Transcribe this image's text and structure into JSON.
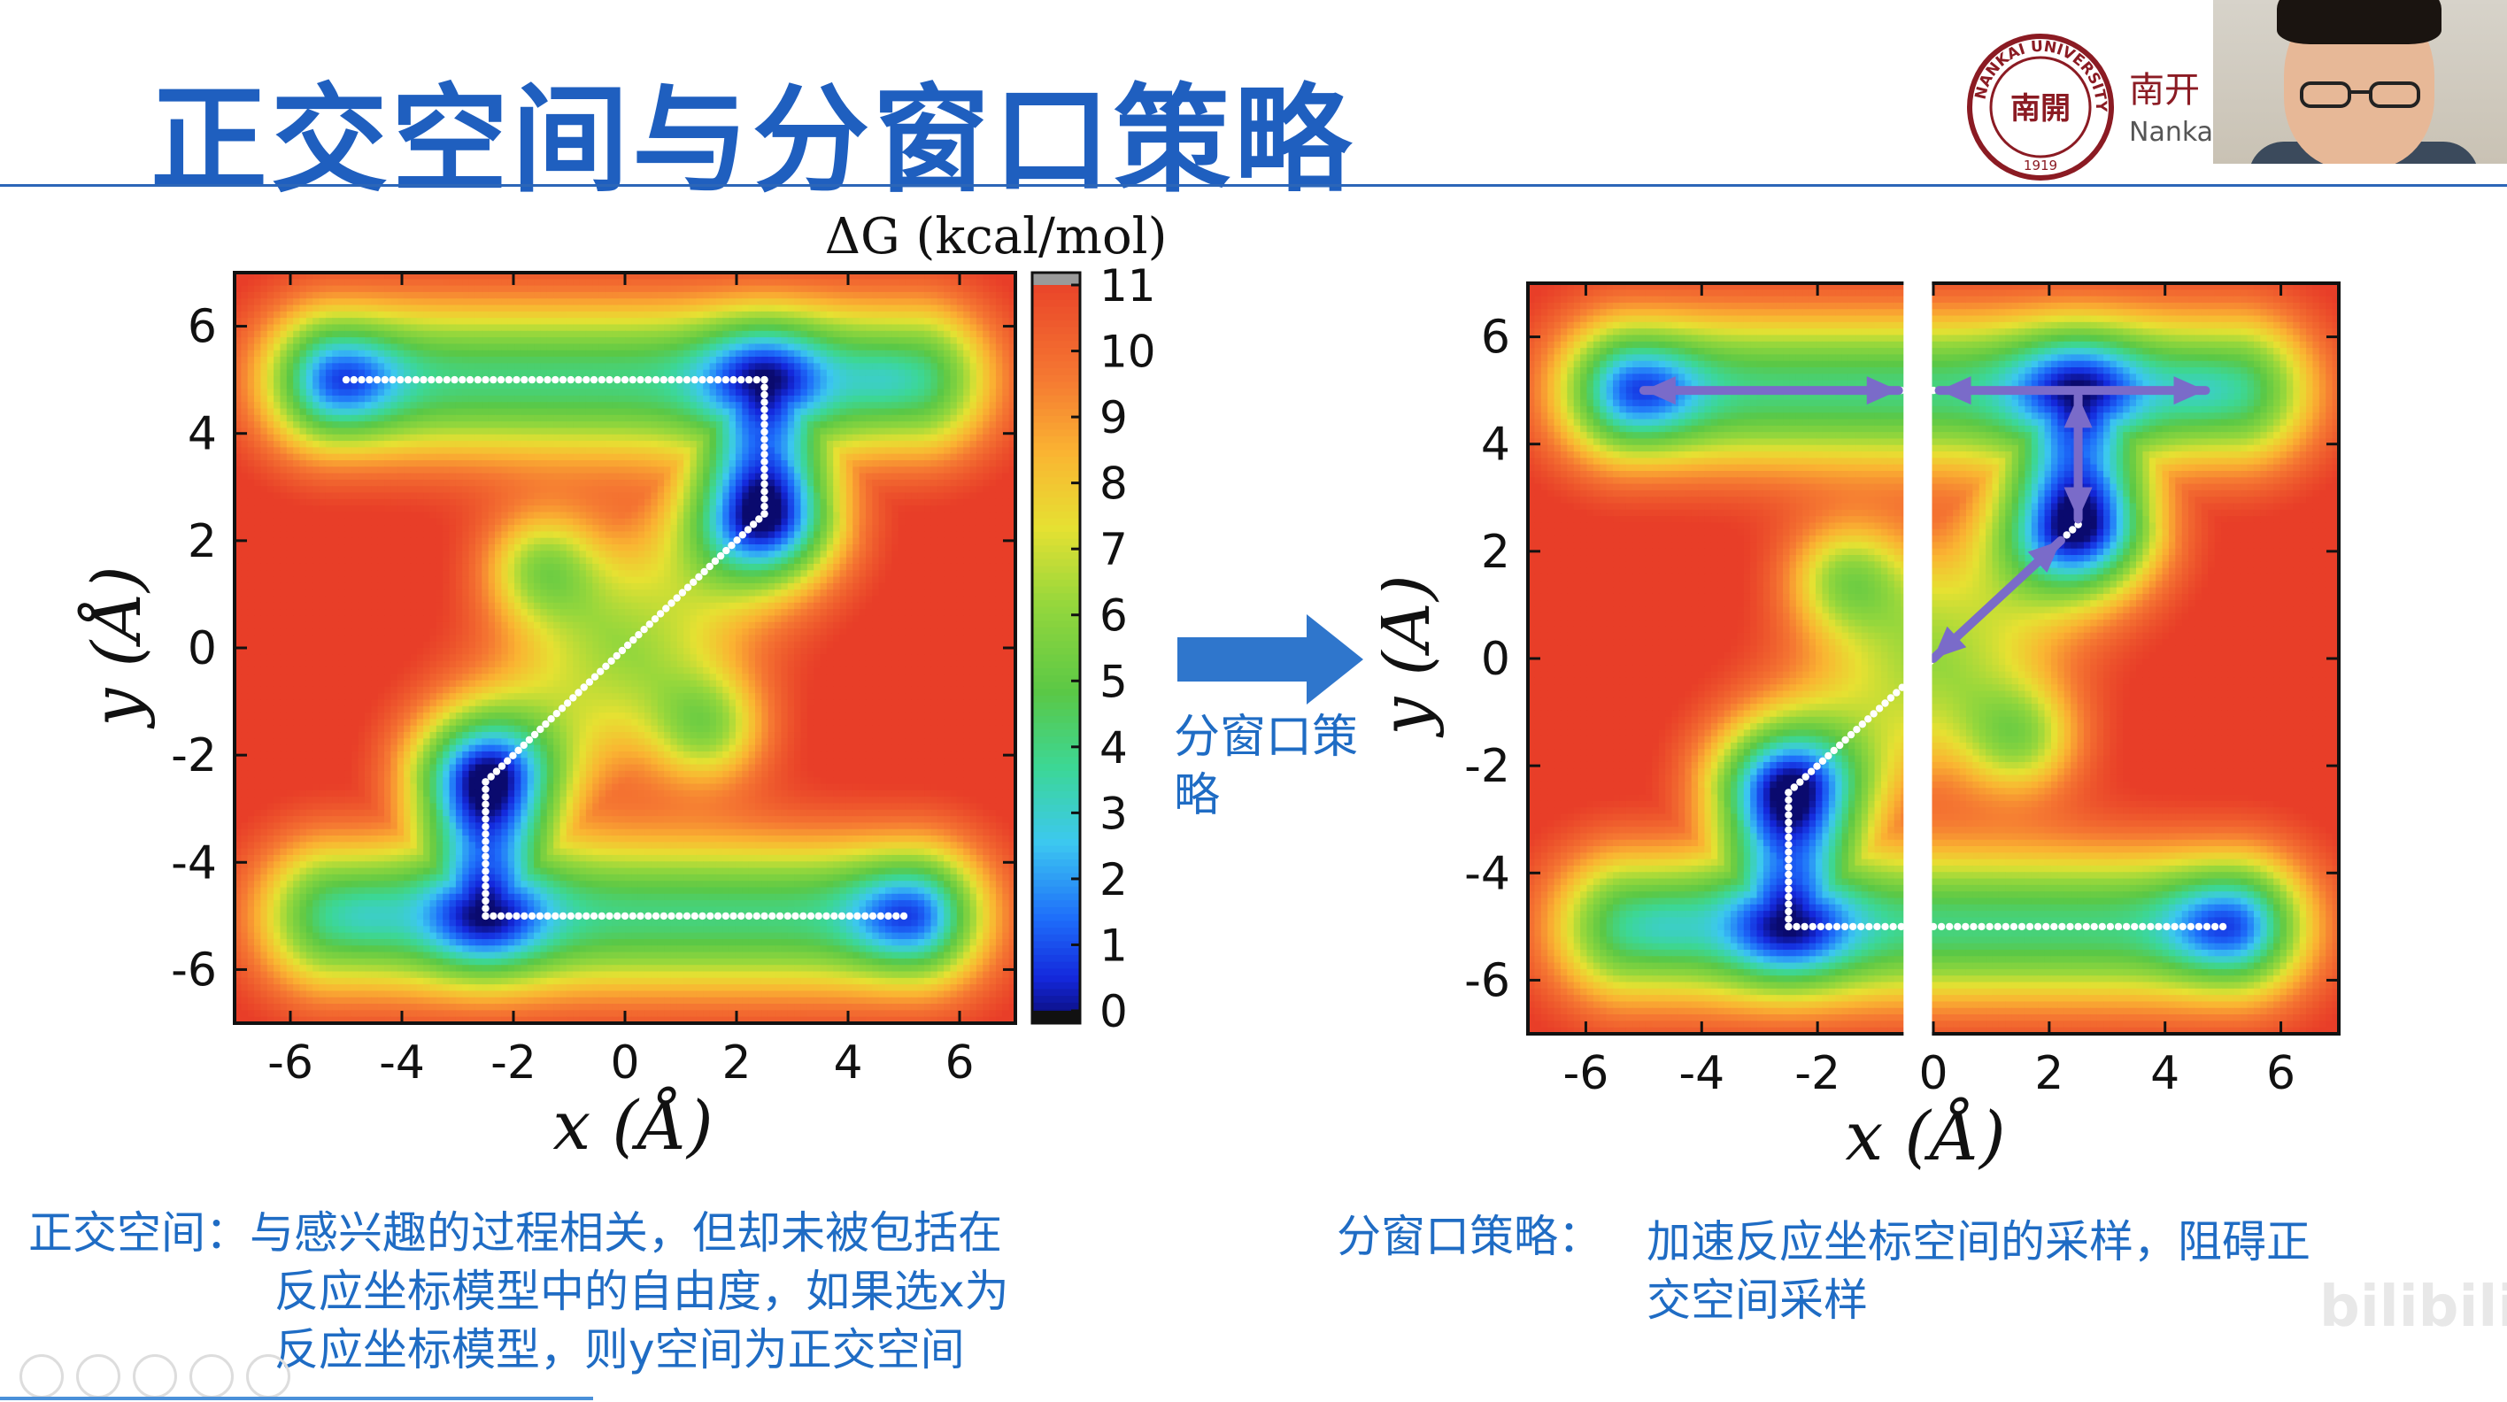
{
  "slide": {
    "title": "正交空间与分窗口策略",
    "logo_university": "NANKAI UNIVERSITY",
    "logo_year": "1919",
    "logo_seal_char": "南開",
    "logo_cn": "南开",
    "logo_en": "Nankai",
    "arrow_label_line1": "分窗口策",
    "arrow_label_line2": "略",
    "caption_left": {
      "label": "正交空间：",
      "line1": "与感兴趣的过程相关，但却未被包括在",
      "line2": "反应坐标模型中的自由度，如果选x为",
      "line3": "反应坐标模型，则y空间为正交空间"
    },
    "caption_right": {
      "label": "分窗口策略：",
      "line1": "加速反应坐标空间的采样，阻碍正",
      "line2": "交空间采样"
    },
    "watermark": "bilibili"
  },
  "colors": {
    "title": "#1f5fbf",
    "caption": "#1f6cc4",
    "arrow": "#2f76cc",
    "path": "#ffffff",
    "window_arrows": "#7a6bc9",
    "logo": "#8b1b23"
  },
  "chart_data": [
    {
      "type": "heatmap",
      "name": "left",
      "title": "ΔG (kcal/mol)",
      "xlabel": "x (Å)",
      "ylabel": "y (Å)",
      "xlim": [
        -7,
        7
      ],
      "ylim": [
        -7,
        7
      ],
      "xticks": [
        -6,
        -4,
        -2,
        0,
        2,
        4,
        6
      ],
      "yticks": [
        -6,
        -4,
        -2,
        0,
        2,
        4,
        6
      ],
      "colorbar_ticks": [
        0,
        1,
        2,
        3,
        4,
        5,
        6,
        7,
        8,
        9,
        10,
        11
      ],
      "colorbar_range": [
        0,
        11
      ],
      "minima": [
        {
          "x": -5,
          "y": 5
        },
        {
          "x": 2.5,
          "y": 5
        },
        {
          "x": 2.5,
          "y": 2.5
        },
        {
          "x": -1.5,
          "y": 1.5
        },
        {
          "x": 1.5,
          "y": -1.5
        },
        {
          "x": -2.5,
          "y": -2.5
        },
        {
          "x": -2.5,
          "y": -5
        },
        {
          "x": 5,
          "y": -5
        }
      ],
      "path": [
        [
          -5,
          5
        ],
        [
          2.5,
          5
        ],
        [
          2.5,
          2.5
        ],
        [
          -2.5,
          -2.5
        ],
        [
          -2.5,
          -5
        ],
        [
          5,
          -5
        ]
      ]
    },
    {
      "type": "heatmap",
      "name": "right",
      "xlabel": "x (Å)",
      "ylabel": "y (Å)",
      "xlim": [
        -7,
        7
      ],
      "ylim": [
        -7,
        7
      ],
      "xticks": [
        -6,
        -4,
        -2,
        0,
        2,
        4,
        6
      ],
      "yticks": [
        -6,
        -4,
        -2,
        0,
        2,
        4,
        6
      ],
      "window_split_x": -0.3,
      "path": [
        [
          -5,
          5
        ],
        [
          2.5,
          5
        ],
        [
          2.5,
          2.5
        ],
        [
          -2.5,
          -2.5
        ],
        [
          -2.5,
          -5
        ],
        [
          5,
          -5
        ]
      ],
      "window_arrows": [
        {
          "from": [
            -5,
            5
          ],
          "to": [
            -0.6,
            5
          ],
          "two_way": true
        },
        {
          "from": [
            0.1,
            5
          ],
          "to": [
            4.7,
            5
          ],
          "two_way": true
        },
        {
          "from": [
            2.5,
            2.6
          ],
          "to": [
            2.5,
            4.9
          ],
          "two_way": true
        },
        {
          "from": [
            0,
            0
          ],
          "to": [
            2.2,
            2.2
          ],
          "two_way": true
        }
      ]
    }
  ]
}
